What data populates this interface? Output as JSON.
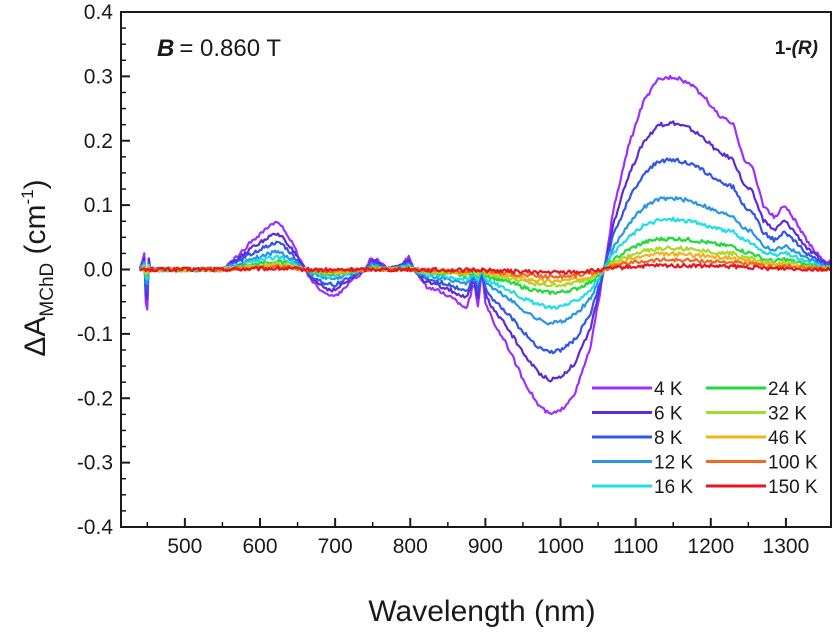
{
  "chart_data": {
    "type": "line",
    "annotation_field": {
      "symbol": "B",
      "value": "= 0.860 T"
    },
    "annotation_compound": {
      "number": "1-",
      "config": "(R)"
    },
    "xlabel": "Wavelength (nm)",
    "ylabel": {
      "main": "ΔA",
      "sub": "MChD",
      "unit_open": " (cm",
      "unit_exp": "-1",
      "unit_close": ")"
    },
    "xlim": [
      415,
      1360
    ],
    "ylim": [
      -0.4,
      0.4
    ],
    "xticks": [
      500,
      600,
      700,
      800,
      900,
      1000,
      1100,
      1200,
      1300
    ],
    "yticks": [
      -0.4,
      -0.3,
      -0.2,
      -0.1,
      0.0,
      0.1,
      0.2,
      0.3,
      0.4
    ],
    "ytick_labels": [
      "-0.4",
      "-0.3",
      "-0.2",
      "-0.1",
      "0.0",
      "0.1",
      "0.2",
      "0.3",
      "0.4"
    ],
    "legend_columns": 2,
    "legend_position": "bottom-right",
    "profile": {
      "description": "Shared spectral shape of the 4 K trace; each series is this shape multiplied by its scale.",
      "x": [
        440,
        446,
        448,
        450,
        452,
        454,
        458,
        470,
        550,
        570,
        590,
        610,
        620,
        630,
        645,
        660,
        670,
        690,
        700,
        720,
        740,
        748,
        755,
        770,
        790,
        798,
        805,
        820,
        850,
        875,
        885,
        890,
        895,
        900,
        910,
        930,
        950,
        970,
        985,
        1000,
        1020,
        1040,
        1058,
        1070,
        1090,
        1110,
        1130,
        1150,
        1170,
        1190,
        1210,
        1230,
        1245,
        1255,
        1270,
        1285,
        1298,
        1310,
        1330,
        1350,
        1360
      ],
      "y": [
        0.0,
        0.025,
        -0.05,
        -0.06,
        0.02,
        0.0,
        0.0,
        0.0,
        0.0,
        0.02,
        0.045,
        0.065,
        0.072,
        0.068,
        0.035,
        0.0,
        -0.02,
        -0.04,
        -0.042,
        -0.02,
        0.0,
        0.018,
        0.015,
        0.0,
        0.01,
        0.02,
        0.0,
        -0.025,
        -0.04,
        -0.06,
        -0.02,
        -0.06,
        0.0,
        -0.05,
        -0.08,
        -0.12,
        -0.17,
        -0.21,
        -0.225,
        -0.22,
        -0.19,
        -0.12,
        0.0,
        0.09,
        0.19,
        0.26,
        0.295,
        0.3,
        0.29,
        0.27,
        0.24,
        0.225,
        0.17,
        0.16,
        0.1,
        0.08,
        0.1,
        0.08,
        0.04,
        0.015,
        0.01
      ]
    },
    "series": [
      {
        "name": "4 K",
        "color": "#9b30ff",
        "scale": 1.0
      },
      {
        "name": "6 K",
        "color": "#5c2bd6",
        "scale": 0.76
      },
      {
        "name": "8 K",
        "color": "#2f56e8",
        "scale": 0.57
      },
      {
        "name": "12 K",
        "color": "#2996e3",
        "scale": 0.37
      },
      {
        "name": "16 K",
        "color": "#21dde6",
        "scale": 0.26
      },
      {
        "name": "24 K",
        "color": "#22d93a",
        "scale": 0.16
      },
      {
        "name": "32 K",
        "color": "#a9d92b",
        "scale": 0.11
      },
      {
        "name": "46 K",
        "color": "#f2b21d",
        "scale": 0.08
      },
      {
        "name": "100 K",
        "color": "#ee6a1e",
        "scale": 0.05
      },
      {
        "name": "150 K",
        "color": "#e3171f",
        "scale": 0.02
      }
    ]
  }
}
